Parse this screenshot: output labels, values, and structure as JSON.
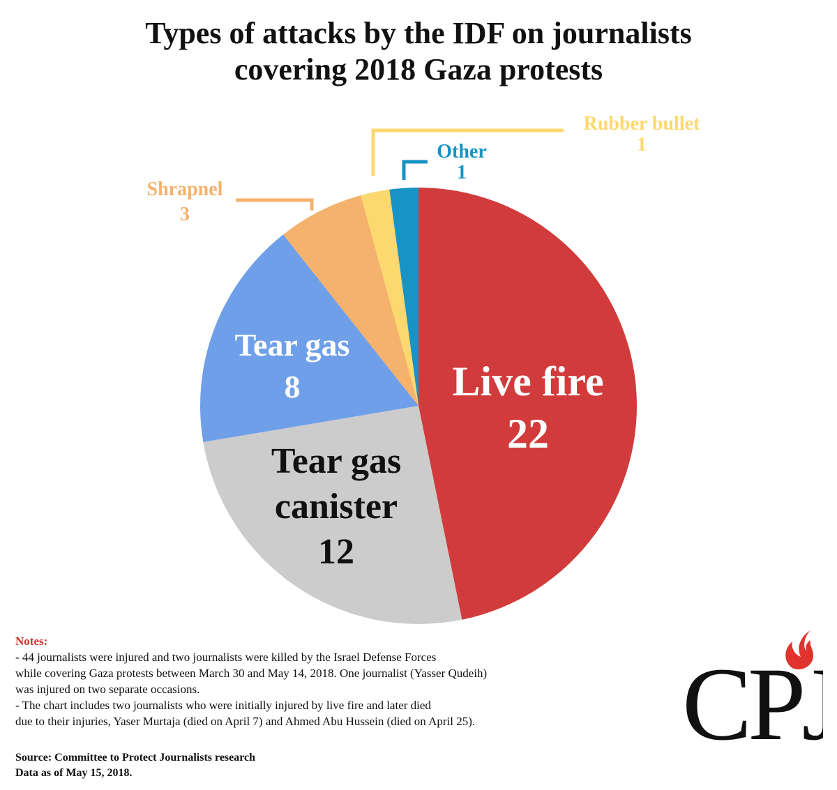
{
  "title_lines": [
    "Types of attacks by the IDF on journalists",
    "covering 2018 Gaza protests"
  ],
  "chart_data": {
    "type": "pie",
    "title": "Types of attacks by the IDF on journalists covering 2018 Gaza protests",
    "slices": [
      {
        "label": "Live fire",
        "value": 22,
        "color": "#d13b3b"
      },
      {
        "label": "Tear gas canister",
        "value": 12,
        "color": "#cccccc"
      },
      {
        "label": "Tear gas",
        "value": 8,
        "color": "#6f9fe8"
      },
      {
        "label": "Shrapnel",
        "value": 3,
        "color": "#f4b26d"
      },
      {
        "label": "Rubber bullet",
        "value": 1,
        "color": "#fdd86f"
      },
      {
        "label": "Other",
        "value": 1,
        "color": "#1793c4"
      }
    ],
    "labels": {
      "live_fire": {
        "text": "Live fire",
        "value": "22"
      },
      "tear_gas_canister": {
        "line1": "Tear gas",
        "line2": "canister",
        "value": "12"
      },
      "tear_gas": {
        "text": "Tear gas",
        "value": "8"
      },
      "shrapnel": {
        "text": "Shrapnel",
        "value": "3"
      },
      "rubber_bullet": {
        "text": "Rubber bullet",
        "value": "1"
      },
      "other": {
        "text": "Other",
        "value": "1"
      }
    }
  },
  "notes": {
    "heading": "Notes:",
    "lines": [
      "- 44 journalists were injured and two journalists were killed by the Israel Defense Forces",
      "while covering Gaza protests between March 30 and May 14, 2018. One journalist (Yasser Qudeih)",
      "was injured on two separate occasions.",
      "- The chart includes two journalists who were initially injured by live fire and later died",
      "due to their injuries, Yaser Murtaja (died on April 7) and Ahmed Abu Hussein (died on April 25)."
    ]
  },
  "source": {
    "line1": "Source: Committee to Protect Journalists research",
    "line2": "Data as of May 15, 2018."
  },
  "logo": {
    "text": "CPJ",
    "flame_color": "#e0332d"
  }
}
